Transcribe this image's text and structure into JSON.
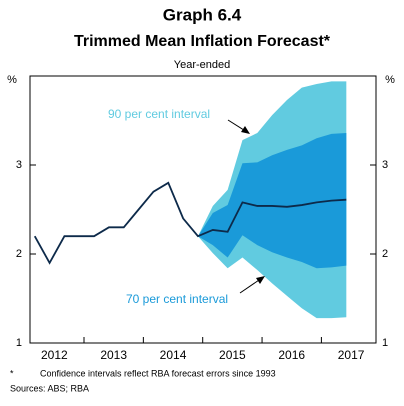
{
  "chart_data": {
    "type": "fan",
    "title": "Graph 6.4",
    "subtitle": "Trimmed Mean Inflation Forecast*",
    "y_label": "Year-ended",
    "y_unit": "%",
    "footnote_marker": "*",
    "footnote": "Confidence intervals reflect RBA forecast errors since 1993",
    "sources": "Sources: ABS; RBA",
    "xlim": [
      2012.09,
      2017.92
    ],
    "xticks": [
      {
        "value": 2012.5,
        "label": "2012"
      },
      {
        "value": 2013.5,
        "label": "2013"
      },
      {
        "value": 2014.5,
        "label": "2014"
      },
      {
        "value": 2015.5,
        "label": "2015"
      },
      {
        "value": 2016.5,
        "label": "2016"
      },
      {
        "value": 2017.5,
        "label": "2017"
      }
    ],
    "xminorticks": [
      2013,
      2014,
      2015,
      2016,
      2017
    ],
    "ylim": [
      1,
      4
    ],
    "yticks": [
      1,
      2,
      3
    ],
    "x": [
      2012.17,
      2012.42,
      2012.67,
      2012.92,
      2013.17,
      2013.42,
      2013.67,
      2013.92,
      2014.17,
      2014.42,
      2014.67,
      2014.92,
      2015.17,
      2015.42,
      2015.67,
      2015.92,
      2016.17,
      2016.42,
      2016.67,
      2016.92,
      2017.17,
      2017.42
    ],
    "series": [
      {
        "name": "Trimmed mean inflation",
        "color": "#0d2a4a",
        "values": [
          2.2,
          1.9,
          2.2,
          2.2,
          2.2,
          2.3,
          2.3,
          2.5,
          2.7,
          2.8,
          2.4,
          2.2,
          2.27,
          2.25,
          2.58,
          2.54,
          2.54,
          2.53,
          2.55,
          2.58,
          2.6,
          2.61
        ]
      }
    ],
    "bands": [
      {
        "name": "90 per cent interval",
        "color": "#61cbe0",
        "x": [
          2014.92,
          2015.17,
          2015.42,
          2015.67,
          2015.92,
          2016.17,
          2016.42,
          2016.67,
          2016.92,
          2017.17,
          2017.42
        ],
        "upper": [
          2.2,
          2.54,
          2.72,
          3.28,
          3.36,
          3.56,
          3.73,
          3.87,
          3.91,
          3.94,
          3.94
        ],
        "lower": [
          2.2,
          2.01,
          1.84,
          1.96,
          1.82,
          1.67,
          1.53,
          1.39,
          1.28,
          1.28,
          1.29
        ]
      },
      {
        "name": "70 per cent interval",
        "color": "#1a9ad9",
        "x": [
          2014.92,
          2015.17,
          2015.42,
          2015.67,
          2015.92,
          2016.17,
          2016.42,
          2016.67,
          2016.92,
          2017.17,
          2017.42
        ],
        "upper": [
          2.2,
          2.46,
          2.55,
          3.02,
          3.03,
          3.11,
          3.17,
          3.22,
          3.3,
          3.35,
          3.36
        ],
        "lower": [
          2.2,
          2.1,
          1.96,
          2.21,
          2.1,
          2.02,
          1.96,
          1.91,
          1.84,
          1.85,
          1.87
        ]
      }
    ]
  }
}
